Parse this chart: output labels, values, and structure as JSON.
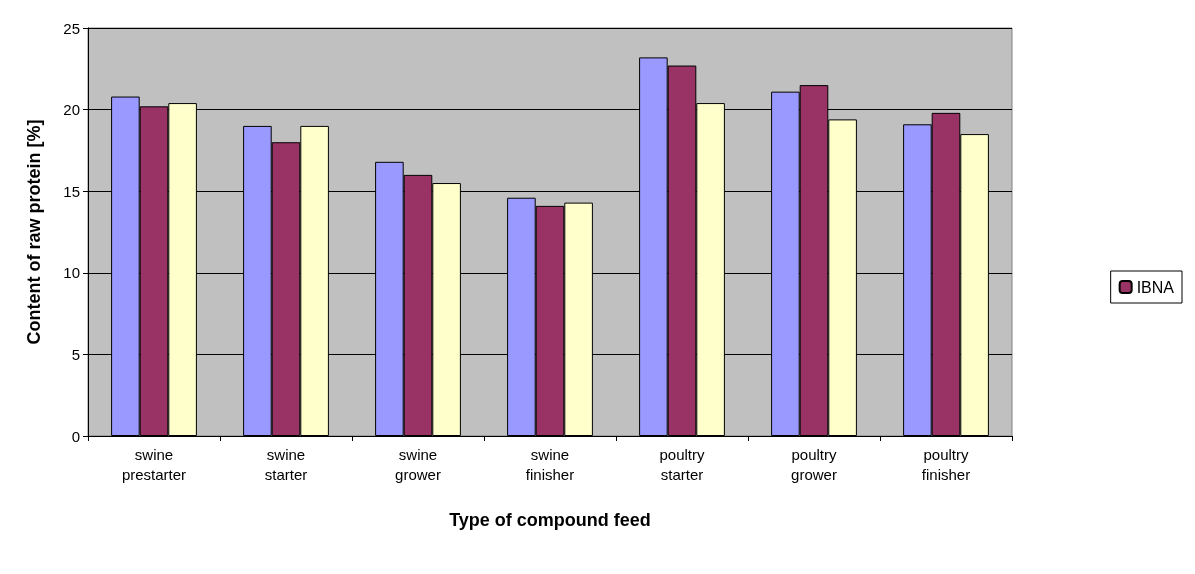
{
  "chart_data": {
    "type": "bar",
    "xlabel": "Type of compound feed",
    "ylabel": "Content of raw protein [%]",
    "categories": [
      "swine\nprestarter",
      "swine\nstarter",
      "swine\ngrower",
      "swine\nfinisher",
      "poultry\nstarter",
      "poultry\ngrower",
      "poultry\nfinisher"
    ],
    "series": [
      {
        "color": "#9999ff",
        "values": [
          20.8,
          19.0,
          16.8,
          14.6,
          23.2,
          21.1,
          19.1
        ]
      },
      {
        "name": "IBNA",
        "color": "#993366",
        "values": [
          20.2,
          18.0,
          16.0,
          14.1,
          22.7,
          21.5,
          19.8
        ]
      },
      {
        "color": "#ffffcc",
        "values": [
          20.4,
          19.0,
          15.5,
          14.3,
          20.4,
          19.4,
          18.5
        ]
      }
    ],
    "ylim": [
      0,
      25
    ],
    "yticks": [
      0,
      5,
      10,
      15,
      20,
      25
    ],
    "grid": "y",
    "legend": "right"
  }
}
